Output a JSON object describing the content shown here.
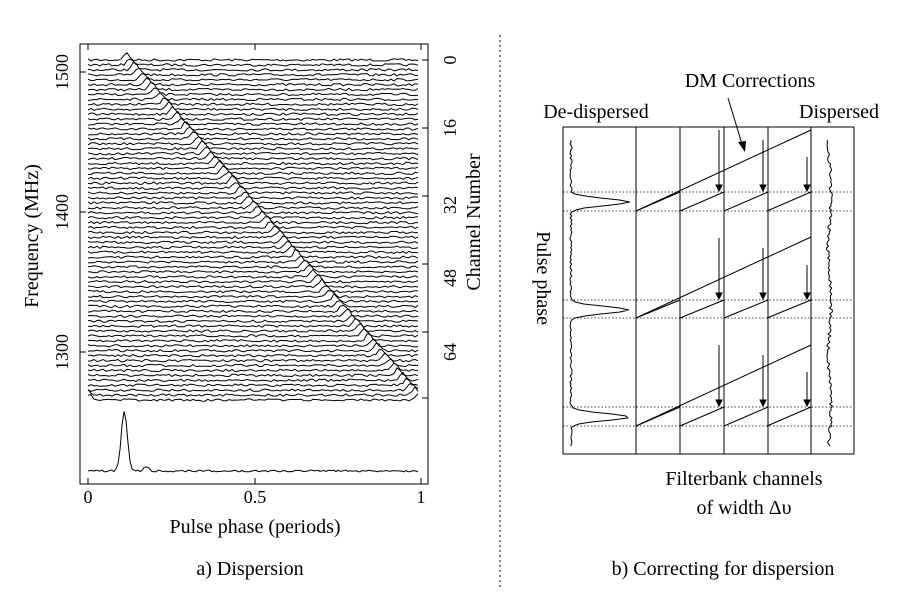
{
  "panel_a": {
    "caption": "a) Dispersion",
    "xlabel": "Pulse phase (periods)",
    "ylabel_left": "Frequency (MHz)",
    "ylabel_right": "Channel Number",
    "x_ticks": [
      "0",
      "0.5",
      "1"
    ],
    "freq_ticks": [
      "1500",
      "1400",
      "1300"
    ],
    "channel_ticks": [
      "0",
      "16",
      "32",
      "48",
      "64"
    ],
    "channels": 70
  },
  "panel_b": {
    "caption": "b) Correcting for dispersion",
    "label_dedispersed": "De-dispersed",
    "label_dispersed": "Dispersed",
    "label_dm": "DM Corrections",
    "label_pulse_phase": "Pulse phase",
    "label_filterbank_line1": "Filterbank channels",
    "label_filterbank_line2": "of width Δυ"
  }
}
